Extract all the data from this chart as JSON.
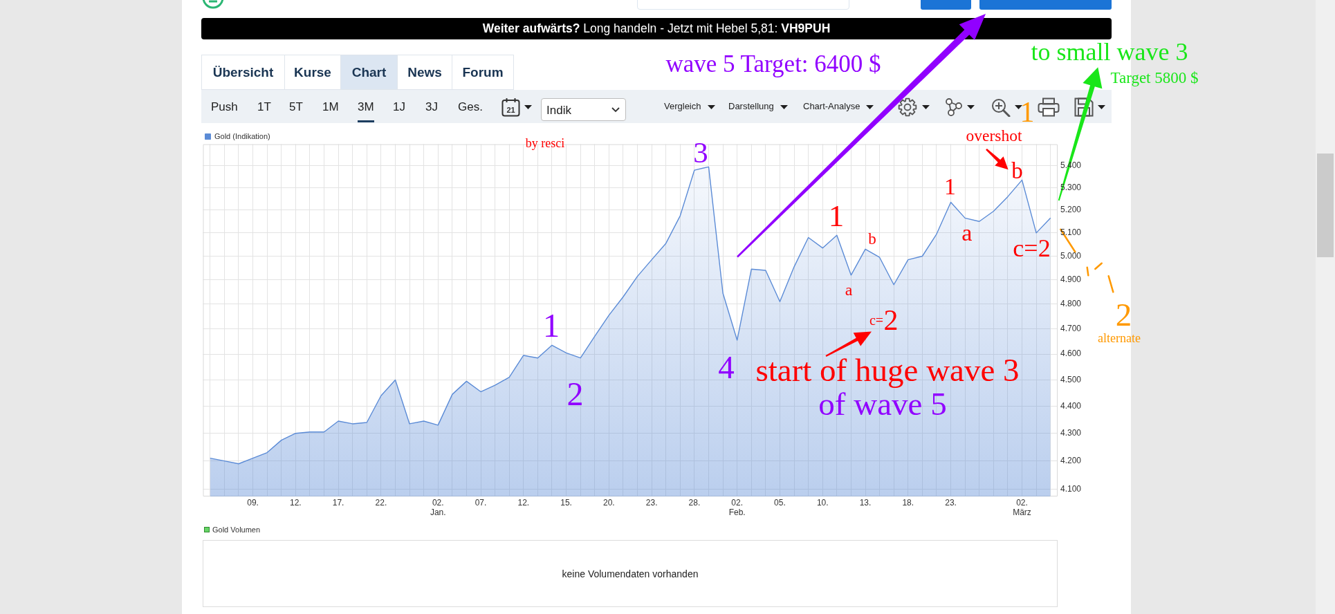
{
  "chart_data": {
    "type": "area",
    "categories": [
      null,
      null,
      null,
      "09.",
      null,
      null,
      "12.",
      null,
      null,
      "17.",
      null,
      null,
      "22.",
      null,
      null,
      null,
      "02.\nJan.",
      null,
      null,
      "07.",
      null,
      null,
      "12.",
      null,
      null,
      "15.",
      null,
      null,
      "20.",
      null,
      null,
      "23.",
      null,
      null,
      "28.",
      null,
      null,
      "02.\nFeb.",
      null,
      null,
      "05.",
      null,
      null,
      "10.",
      null,
      null,
      "13.",
      null,
      null,
      "18.",
      null,
      null,
      "23.",
      null,
      null,
      null,
      null,
      "02.\nMärz",
      null,
      null
    ],
    "series": [
      {
        "name": "Gold (Indikation)",
        "color": "#5b8bd6",
        "values": [
          4210,
          4200,
          4190,
          4210,
          4230,
          4275,
          4300,
          4305,
          4305,
          4345,
          4335,
          4340,
          4440,
          4500,
          4335,
          4345,
          4330,
          4445,
          4495,
          4455,
          4480,
          4510,
          4595,
          4585,
          4635,
          4605,
          4585,
          4670,
          4755,
          4830,
          4915,
          4985,
          5055,
          5175,
          5380,
          5395,
          4845,
          4655,
          4945,
          4940,
          4810,
          4955,
          5080,
          5035,
          5090,
          4920,
          5030,
          4995,
          4880,
          4985,
          5000,
          5095,
          5235,
          5165,
          5150,
          5195,
          5260,
          5335,
          5100,
          5165
        ]
      }
    ],
    "ylim": [
      4075,
      5500
    ],
    "yticks": [
      {
        "value": 4100,
        "label": "4.100"
      },
      {
        "value": 4200,
        "label": "4.200"
      },
      {
        "value": 4300,
        "label": "4.300"
      },
      {
        "value": 4400,
        "label": "4.400"
      },
      {
        "value": 4500,
        "label": "4.500"
      },
      {
        "value": 4600,
        "label": "4.600"
      },
      {
        "value": 4700,
        "label": "4.700"
      },
      {
        "value": 4800,
        "label": "4.800"
      },
      {
        "value": 4900,
        "label": "4.900"
      },
      {
        "value": 5000,
        "label": "5.000"
      },
      {
        "value": 5100,
        "label": "5.100"
      },
      {
        "value": 5200,
        "label": "5.200"
      },
      {
        "value": 5300,
        "label": "5.300"
      },
      {
        "value": 5400,
        "label": "5.400"
      }
    ],
    "log": true,
    "grid": true,
    "legend": "top left",
    "annotations": [
      "Weiter aufwärts?",
      "Long handeln - Jetzt mit Hebel 5,81:",
      "VH9PUH",
      "Übersicht",
      "Kurse",
      "Chart",
      "News",
      "Forum",
      "Push",
      "1T",
      "5T",
      "1M",
      "3M",
      "1J",
      "3J",
      "Ges.",
      "21",
      "Indik",
      "Vergleich",
      "Darstellung",
      "Chart-Analyse",
      "wave 5 Target: 6400 $",
      "to small wave 3",
      "Target 5800 $",
      "by resci",
      "1",
      "2",
      "3",
      "4",
      "1",
      "a",
      "b",
      "c=",
      "2",
      "start of huge wave 3",
      "of wave 5",
      "1",
      "a",
      "overshot",
      "b",
      "c=2",
      "1",
      "2",
      "alternate",
      "Gold Volumen",
      "keine Volumendaten vorhanden"
    ]
  }
}
